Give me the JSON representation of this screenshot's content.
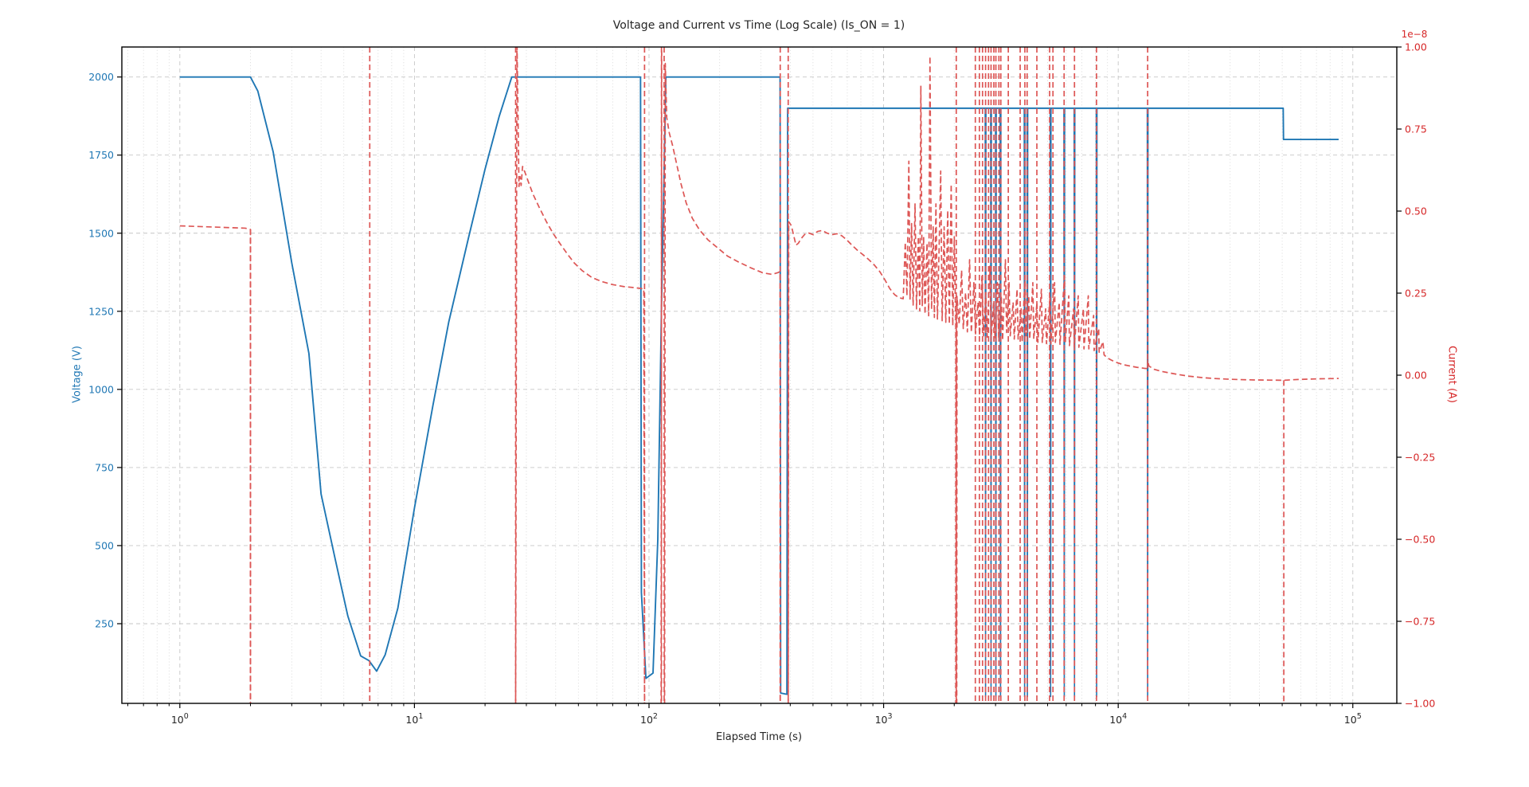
{
  "figure": {
    "title": "Voltage and Current vs Time (Log Scale) (Is_ON = 1)",
    "xlabel": "Elapsed Time (s)",
    "ylabel_left": "Voltage (V)",
    "ylabel_right": "Current (A)",
    "offset_label": "1e−8",
    "colors": {
      "voltage": "#1f77b4",
      "current_line": "#dd5655",
      "current_text": "#d62728",
      "grid_major": "#c6c6c6",
      "grid_minor": "#d9d9d9",
      "spine": "#000000"
    }
  },
  "chart_data": {
    "type": "line",
    "title": "Voltage and Current vs Time (Log Scale) (Is_ON = 1)",
    "xlabel": "Elapsed Time (s)",
    "x_scale": "log",
    "xlim": [
      0.566,
      154000
    ],
    "grid": true,
    "x_ticks": [
      {
        "value": 1,
        "base": "10",
        "exp": "0"
      },
      {
        "value": 10,
        "base": "10",
        "exp": "1"
      },
      {
        "value": 100,
        "base": "10",
        "exp": "2"
      },
      {
        "value": 1000,
        "base": "10",
        "exp": "3"
      },
      {
        "value": 10000,
        "base": "10",
        "exp": "4"
      },
      {
        "value": 100000,
        "base": "10",
        "exp": "5"
      }
    ],
    "left_axis": {
      "label": "Voltage (V)",
      "lim": [
        -5,
        2096
      ],
      "tick_values": [
        250,
        500,
        750,
        1000,
        1250,
        1500,
        1750,
        2000
      ],
      "tick_labels": [
        "250",
        "500",
        "750",
        "1000",
        "1250",
        "1500",
        "1750",
        "2000"
      ],
      "color": "#1f77b4"
    },
    "right_axis": {
      "label": "Current (A)",
      "lim": [
        -1,
        1
      ],
      "unit_multiplier": "1e−8",
      "tick_values": [
        -1,
        -0.75,
        -0.5,
        -0.25,
        0,
        0.25,
        0.5,
        0.75,
        1
      ],
      "tick_labels": [
        "−1.00",
        "−0.75",
        "−0.50",
        "−0.25",
        "0.00",
        "0.25",
        "0.50",
        "0.75",
        "1.00"
      ],
      "color": "#d62728"
    },
    "series": [
      {
        "name": "Voltage",
        "axis": "left",
        "style": "solid",
        "color": "#1f77b4",
        "points": [
          [
            1,
            2000
          ],
          [
            2,
            2000
          ],
          [
            2.15,
            1955
          ],
          [
            2.5,
            1760
          ],
          [
            3,
            1405
          ],
          [
            3.55,
            1115
          ],
          [
            4,
            665
          ],
          [
            4.6,
            455
          ],
          [
            5.2,
            275
          ],
          [
            5.9,
            147
          ],
          [
            6.4,
            132
          ],
          [
            6.9,
            98
          ],
          [
            7.5,
            150
          ],
          [
            8.5,
            300
          ],
          [
            10,
            620
          ],
          [
            12,
            950
          ],
          [
            14,
            1215
          ],
          [
            17,
            1485
          ],
          [
            20,
            1705
          ],
          [
            23,
            1875
          ],
          [
            26,
            2000
          ],
          [
            92,
            2000
          ],
          [
            92.8,
            350
          ],
          [
            97,
            75
          ],
          [
            104,
            92
          ],
          [
            109,
            520
          ],
          [
            113,
            1260
          ],
          [
            118,
            2000
          ],
          [
            362,
            2000
          ],
          [
            364,
            28
          ],
          [
            387,
            24
          ],
          [
            390,
            1900
          ],
          [
            50500,
            1900
          ],
          [
            50650,
            1800
          ],
          [
            87000,
            1800
          ]
        ],
        "dip_times": [
          2720,
          2870,
          3010,
          3150,
          3990,
          4100,
          5150,
          5890,
          6510,
          8090,
          13350
        ],
        "dip_floor_v": 15
      },
      {
        "name": "Current",
        "axis": "right",
        "style": "dashed",
        "color": "#dd5655",
        "segments": [
          [
            [
              1,
              0.455
            ],
            [
              1.9,
              0.448
            ],
            [
              2,
              0.444
            ],
            [
              2,
              -1.03
            ]
          ],
          [
            [
              27,
              -1.03
            ],
            [
              27.35,
              1.03
            ],
            [
              27.9,
              0.575
            ],
            [
              28.2,
              0.605
            ],
            [
              28.5,
              0.578
            ],
            [
              28.9,
              0.636
            ],
            [
              29.6,
              0.618
            ],
            [
              30.5,
              0.592
            ],
            [
              32,
              0.552
            ],
            [
              34,
              0.512
            ],
            [
              36.5,
              0.468
            ],
            [
              39,
              0.432
            ],
            [
              42,
              0.398
            ],
            [
              45,
              0.368
            ],
            [
              48,
              0.342
            ],
            [
              52,
              0.318
            ],
            [
              57,
              0.298
            ],
            [
              63,
              0.285
            ],
            [
              70,
              0.276
            ],
            [
              78,
              0.27
            ],
            [
              86,
              0.267
            ],
            [
              95,
              0.263
            ],
            [
              95.7,
              -1.03
            ]
          ],
          [
            [
              112.6,
              -1.03
            ],
            [
              113.2,
              1.03
            ]
          ],
          [
            [
              116.5,
              -1.03
            ],
            [
              117.3,
              0.95
            ],
            [
              119,
              0.785
            ],
            [
              122,
              0.738
            ],
            [
              126,
              0.7
            ],
            [
              131,
              0.645
            ],
            [
              137,
              0.582
            ],
            [
              144,
              0.525
            ],
            [
              153,
              0.478
            ],
            [
              164,
              0.443
            ],
            [
              178,
              0.413
            ],
            [
              196,
              0.388
            ],
            [
              216,
              0.363
            ],
            [
              242,
              0.344
            ],
            [
              272,
              0.327
            ],
            [
              305,
              0.312
            ],
            [
              335,
              0.307
            ],
            [
              356,
              0.313
            ],
            [
              362,
              0.316
            ],
            [
              362.5,
              -1.03
            ]
          ],
          [
            [
              392,
              -1.03
            ],
            [
              394,
              0.468
            ],
            [
              404,
              0.456
            ],
            [
              413,
              0.428
            ],
            [
              423,
              0.396
            ],
            [
              433,
              0.402
            ],
            [
              446,
              0.417
            ],
            [
              461,
              0.429
            ],
            [
              480,
              0.433
            ],
            [
              502,
              0.428
            ],
            [
              523,
              0.438
            ],
            [
              548,
              0.441
            ],
            [
              573,
              0.433
            ],
            [
              602,
              0.428
            ],
            [
              632,
              0.431
            ],
            [
              663,
              0.425
            ],
            [
              697,
              0.412
            ],
            [
              733,
              0.396
            ],
            [
              772,
              0.381
            ],
            [
              817,
              0.367
            ],
            [
              862,
              0.353
            ],
            [
              912,
              0.336
            ],
            [
              962,
              0.316
            ],
            [
              1012,
              0.291
            ],
            [
              1062,
              0.264
            ],
            [
              1112,
              0.246
            ],
            [
              1162,
              0.236
            ],
            [
              1212,
              0.233
            ],
            [
              1237,
              0.405
            ],
            [
              1257,
              0.242
            ],
            [
              1281,
              0.652
            ],
            [
              1296,
              0.232
            ],
            [
              1316,
              0.462
            ],
            [
              1336,
              0.212
            ],
            [
              1361,
              0.522
            ],
            [
              1381,
              0.202
            ],
            [
              1406,
              0.422
            ],
            [
              1426,
              0.196
            ],
            [
              1441,
              0.882
            ],
            [
              1461,
              0.212
            ],
            [
              1481,
              0.422
            ],
            [
              1501,
              0.186
            ],
            [
              1531,
              0.402
            ],
            [
              1556,
              0.181
            ],
            [
              1576,
              0.972
            ],
            [
              1601,
              0.201
            ],
            [
              1626,
              0.452
            ],
            [
              1646,
              0.176
            ],
            [
              1671,
              0.522
            ],
            [
              1696,
              0.171
            ],
            [
              1726,
              0.402
            ],
            [
              1751,
              0.622
            ],
            [
              1776,
              0.166
            ],
            [
              1811,
              0.452
            ],
            [
              1841,
              0.161
            ],
            [
              1876,
              0.502
            ],
            [
              1906,
              0.156
            ],
            [
              1941,
              0.582
            ],
            [
              1971,
              0.151
            ],
            [
              2001,
              0.422
            ],
            [
              2030,
              0.15
            ],
            [
              2030,
              -1.03
            ]
          ],
          [
            [
              2050,
              -1.03
            ],
            [
              2055,
              0.24
            ],
            [
              2100,
              0.155
            ],
            [
              2150,
              0.32
            ],
            [
              2185,
              0.142
            ],
            [
              2235,
              0.252
            ],
            [
              2275,
              0.132
            ],
            [
              2325,
              0.352
            ],
            [
              2365,
              0.13
            ],
            [
              2425,
              0.282
            ],
            [
              2465,
              0.126
            ],
            [
              2525,
              0.222
            ],
            [
              2565,
              0.12
            ],
            [
              2625,
              0.302
            ],
            [
              2665,
              0.12
            ],
            [
              2725,
              0.252
            ],
            [
              2765,
              0.116
            ],
            [
              2835,
              0.332
            ],
            [
              2875,
              0.115
            ],
            [
              2945,
              0.222
            ],
            [
              2985,
              0.11
            ],
            [
              3055,
              0.282
            ],
            [
              3095,
              0.11
            ],
            [
              3175,
              0.242
            ],
            [
              3215,
              0.106
            ],
            [
              3305,
              0.352
            ],
            [
              3345,
              0.13
            ],
            [
              3425,
              0.282
            ],
            [
              3465,
              0.12
            ],
            [
              3565,
              0.222
            ],
            [
              3605,
              0.11
            ],
            [
              3705,
              0.262
            ],
            [
              3745,
              0.11
            ],
            [
              3855,
              0.202
            ],
            [
              3895,
              0.1
            ],
            [
              4005,
              0.302
            ],
            [
              4045,
              0.12
            ],
            [
              4155,
              0.242
            ],
            [
              4195,
              0.11
            ],
            [
              4325,
              0.282
            ],
            [
              4365,
              0.11
            ],
            [
              4505,
              0.222
            ],
            [
              4545,
              0.1
            ],
            [
              4705,
              0.262
            ],
            [
              4745,
              0.1
            ],
            [
              4905,
              0.202
            ],
            [
              4945,
              0.096
            ],
            [
              5125,
              0.242
            ],
            [
              5165,
              0.095
            ],
            [
              5355,
              0.282
            ],
            [
              5395,
              0.1
            ],
            [
              5605,
              0.222
            ],
            [
              5645,
              0.094
            ],
            [
              5905,
              0.302
            ],
            [
              5945,
              0.1
            ],
            [
              6155,
              0.242
            ],
            [
              6195,
              0.09
            ],
            [
              6455,
              0.202
            ],
            [
              6495,
              0.086
            ],
            [
              6755,
              0.242
            ],
            [
              6795,
              0.085
            ],
            [
              7105,
              0.202
            ],
            [
              7145,
              0.08
            ],
            [
              7455,
              0.242
            ],
            [
              7495,
              0.08
            ],
            [
              7855,
              0.182
            ],
            [
              7895,
              0.075
            ],
            [
              8255,
              0.142
            ],
            [
              8295,
              0.07
            ],
            [
              8605,
              0.102
            ],
            [
              8705,
              0.062
            ],
            [
              9005,
              0.052
            ],
            [
              9405,
              0.045
            ],
            [
              9905,
              0.038
            ],
            [
              10505,
              0.032
            ],
            [
              11205,
              0.028
            ],
            [
              12005,
              0.024
            ],
            [
              12905,
              0.021
            ],
            [
              13330,
              0.02
            ],
            [
              13360,
              0.046
            ],
            [
              13510,
              0.028
            ],
            [
              14205,
              0.018
            ],
            [
              15205,
              0.012
            ],
            [
              16505,
              0.007
            ],
            [
              18005,
              0.002
            ],
            [
              20005,
              -0.003
            ],
            [
              22505,
              -0.007
            ],
            [
              25505,
              -0.01
            ],
            [
              29005,
              -0.012
            ],
            [
              33005,
              -0.0135
            ],
            [
              38005,
              -0.0145
            ],
            [
              44005,
              -0.015
            ],
            [
              50500,
              -0.0155
            ],
            [
              51205,
              -0.0155
            ],
            [
              55005,
              -0.014
            ],
            [
              60005,
              -0.0128
            ],
            [
              66005,
              -0.0118
            ],
            [
              73005,
              -0.011
            ],
            [
              80005,
              -0.0105
            ],
            [
              87005,
              -0.01
            ]
          ]
        ],
        "event_lines_full": [
          6.45,
          27,
          95.7,
          113,
          116,
          362.5,
          392,
          2040,
          2460,
          2560,
          2640,
          2720,
          2800,
          2870,
          2950,
          3010,
          3100,
          3160,
          3400,
          3820,
          4000,
          4090,
          4500,
          5100,
          5270,
          5880,
          6510,
          8080,
          13350
        ],
        "event_lines_down": [
          [
            2,
            0.444
          ],
          [
            50800,
            -0.0155
          ]
        ]
      }
    ]
  }
}
